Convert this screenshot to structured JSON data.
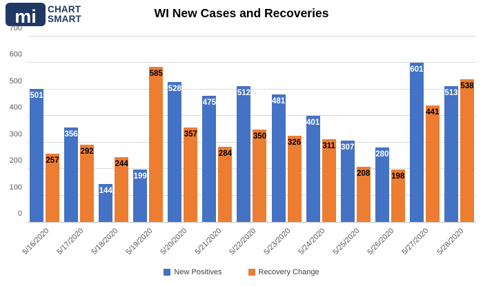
{
  "logo": {
    "monogram": "mi",
    "line1": "CHART",
    "line2": "SMART"
  },
  "header": {
    "title": "WI New Cases and Recoveries"
  },
  "colors": {
    "blue": "#4472C4",
    "orange": "#ED7D31",
    "navy": "#203864",
    "gridline": "#D9D9D9",
    "axis_line": "#BFBFBF",
    "tick_text": "#595959"
  },
  "chart_data": {
    "type": "bar",
    "title": "WI New Cases and Recoveries",
    "categories": [
      "5/16/2020",
      "5/17/2020",
      "5/18/2020",
      "5/19/2020",
      "5/20/2020",
      "5/21/2020",
      "5/22/2020",
      "5/23/2020",
      "5/24/2020",
      "5/25/2020",
      "5/26/2020",
      "5/27/2020",
      "5/28/2020"
    ],
    "series": [
      {
        "name": "New Positives",
        "color": "#4472C4",
        "label_color": "#FFFFFF",
        "values": [
          501,
          356,
          144,
          199,
          528,
          475,
          512,
          481,
          401,
          307,
          280,
          601,
          513
        ]
      },
      {
        "name": "Recovery Change",
        "color": "#ED7D31",
        "label_color": "#000000",
        "values": [
          257,
          292,
          244,
          585,
          357,
          284,
          350,
          326,
          311,
          208,
          198,
          441,
          538
        ]
      }
    ],
    "xlabel": "",
    "ylabel": "",
    "ylim": [
      0,
      700
    ],
    "yticks": [
      0,
      100,
      200,
      300,
      400,
      500,
      600,
      700
    ],
    "grid": true,
    "legend_position": "bottom",
    "data_labels": true
  }
}
